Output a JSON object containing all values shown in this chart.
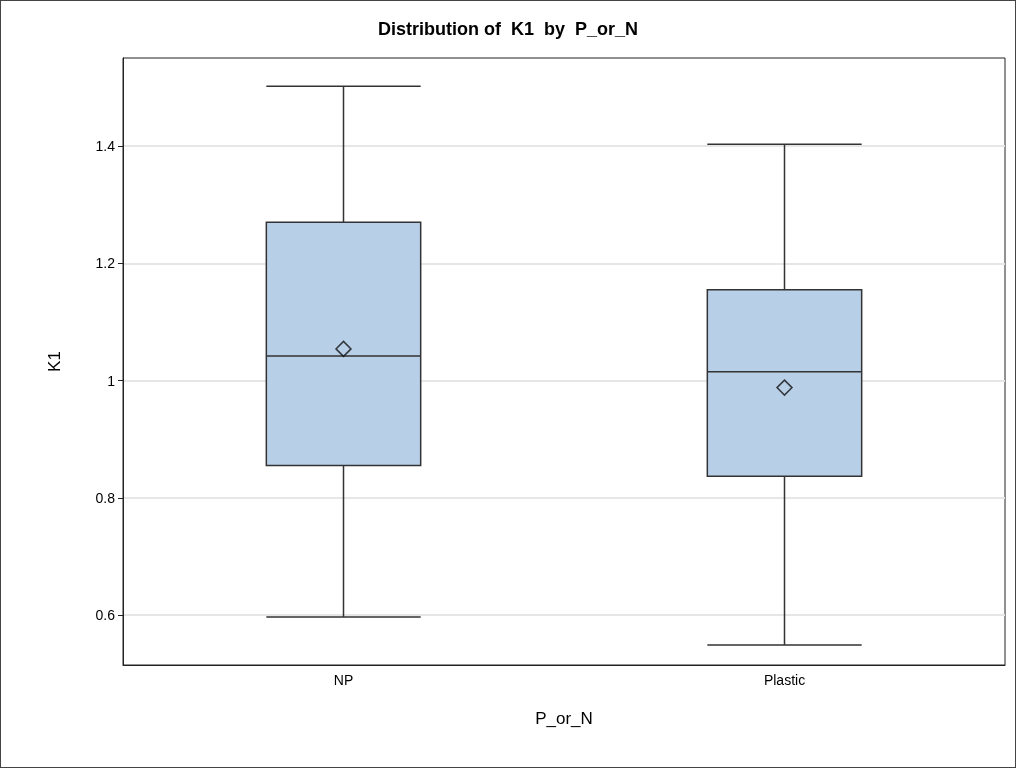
{
  "chart_data": {
    "type": "box",
    "title": "Distribution of  K1  by  P_or_N",
    "xlabel": "P_or_N",
    "ylabel": "K1",
    "categories": [
      "NP",
      "Plastic"
    ],
    "boxes": [
      {
        "low": 0.597,
        "q1": 0.855,
        "median": 1.042,
        "q3": 1.27,
        "high": 1.502,
        "mean": 1.054
      },
      {
        "low": 0.549,
        "q1": 0.837,
        "median": 1.015,
        "q3": 1.155,
        "high": 1.403,
        "mean": 0.988
      }
    ],
    "color": "#b8cfe8",
    "marker": "diamond",
    "ylim": [
      0.515,
      1.55
    ],
    "yticks": [
      0.6,
      0.8,
      1,
      1.2,
      1.4
    ],
    "grid": "y"
  }
}
